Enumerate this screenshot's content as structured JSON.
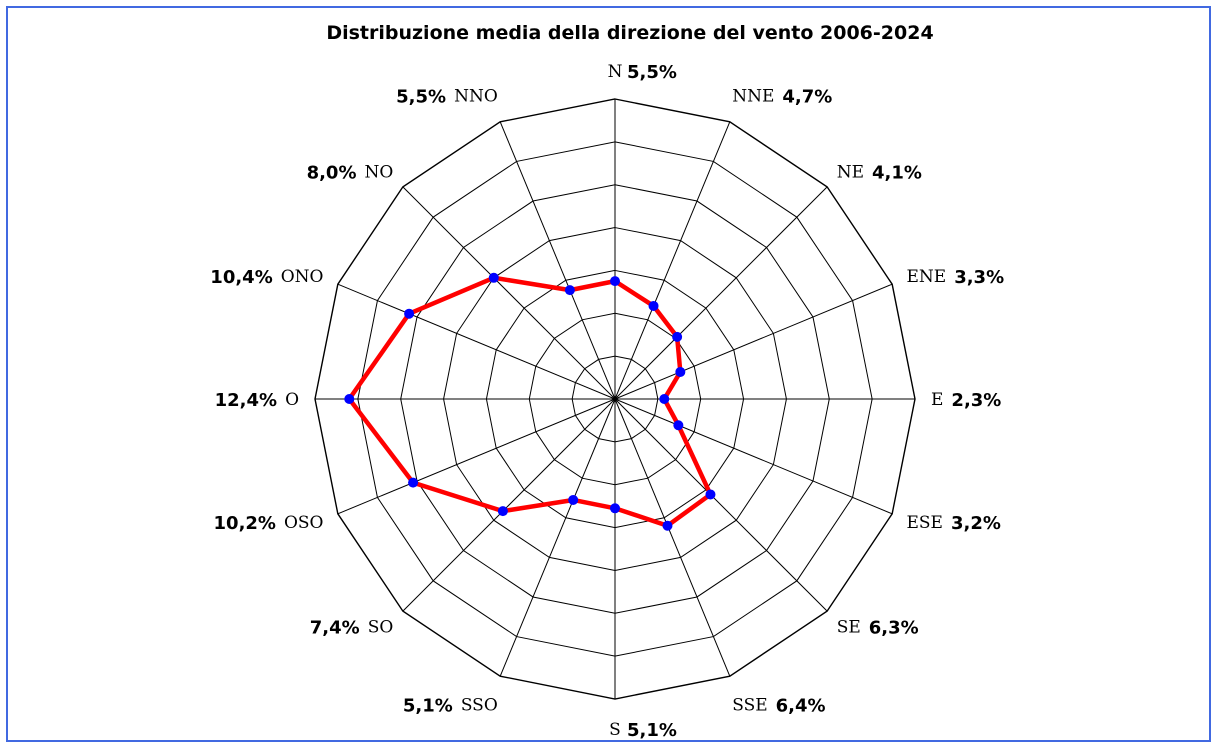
{
  "chart_data": {
    "type": "radar",
    "title": "Distribuzione media della direzione del vento 2006-2024",
    "directions": [
      "N",
      "NNE",
      "NE",
      "ENE",
      "E",
      "ESE",
      "SE",
      "SSE",
      "S",
      "SSO",
      "SO",
      "OSO",
      "O",
      "ONO",
      "NO",
      "NNO"
    ],
    "values": [
      5.5,
      4.7,
      4.1,
      3.3,
      2.3,
      3.2,
      6.3,
      6.4,
      5.1,
      5.1,
      7.4,
      10.2,
      12.4,
      10.4,
      8.0,
      5.5
    ],
    "value_labels": [
      "5,5%",
      "4,7%",
      "4,1%",
      "3,3%",
      "2,3%",
      "3,2%",
      "6,3%",
      "6,4%",
      "5,1%",
      "5,1%",
      "7,4%",
      "10,2%",
      "12,4%",
      "10,4%",
      "8,0%",
      "5,5%"
    ],
    "rmax": 14,
    "grid_rings": 7,
    "grid": true,
    "series_color": "#ff0000",
    "marker_color": "#0000ff",
    "frame_color": "#4169e1"
  }
}
